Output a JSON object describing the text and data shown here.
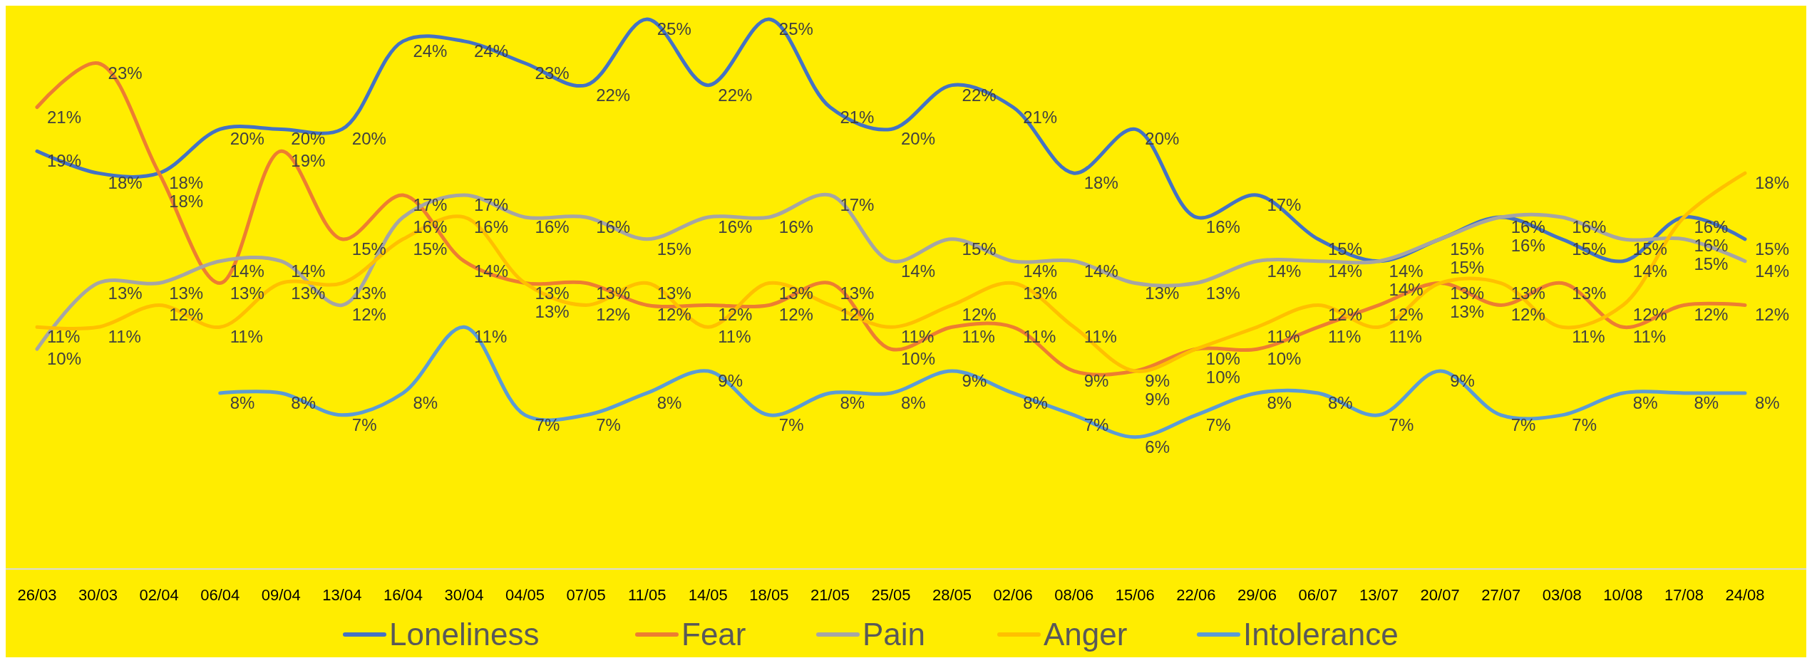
{
  "chart_data": {
    "type": "line",
    "categories": [
      "26/03",
      "30/03",
      "02/04",
      "06/04",
      "09/04",
      "13/04",
      "16/04",
      "30/04",
      "04/05",
      "07/05",
      "11/05",
      "14/05",
      "18/05",
      "21/05",
      "25/05",
      "28/05",
      "02/06",
      "08/06",
      "15/06",
      "22/06",
      "29/06",
      "06/07",
      "13/07",
      "20/07",
      "27/07",
      "03/08",
      "10/08",
      "17/08",
      "24/08"
    ],
    "series": [
      {
        "name": "Loneliness",
        "color": "#4472c4",
        "values": [
          19,
          18,
          18,
          20,
          20,
          20,
          24,
          24,
          23,
          22,
          25,
          22,
          25,
          21,
          20,
          22,
          21,
          18,
          20,
          16,
          17,
          15,
          14,
          15,
          16,
          15,
          14,
          16,
          15
        ],
        "value_labels": [
          "19%",
          "18%",
          "18%",
          "20%",
          "20%",
          "20%",
          "24%",
          "24%",
          "23%",
          "22%",
          "25%",
          "22%",
          "25%",
          "21%",
          "20%",
          "22%",
          "21%",
          "18%",
          "20%",
          "16%",
          "17%",
          "15%",
          "14%",
          "15%",
          "16%",
          "15%",
          "14%",
          "16%",
          "15%"
        ]
      },
      {
        "name": "Fear",
        "color": "#ed7d31",
        "values": [
          21,
          23,
          18,
          13,
          19,
          15,
          17,
          14,
          13,
          13,
          12,
          12,
          12,
          13,
          10,
          11,
          11,
          9,
          9,
          10,
          10,
          11,
          12,
          13,
          12,
          13,
          11,
          12,
          12
        ],
        "value_labels": [
          "21%",
          "23%",
          "18%",
          "13%",
          "19%",
          "15%",
          "17%",
          "14%",
          "13%",
          "13%",
          "12%",
          "12%",
          "12%",
          "13%",
          "10%",
          "11%",
          "11%",
          "9%",
          "9%",
          "10%",
          "10%",
          "11%",
          "12%",
          "13%",
          "12%",
          "13%",
          "11%",
          "12%",
          "12%"
        ]
      },
      {
        "name": "Pain",
        "color": "#a5a5a5",
        "values": [
          10,
          13,
          13,
          14,
          14,
          12,
          16,
          17,
          16,
          16,
          15,
          16,
          16,
          17,
          14,
          15,
          14,
          14,
          13,
          13,
          14,
          14,
          14,
          15,
          16,
          16,
          15,
          15,
          14
        ],
        "value_labels": [
          "10%",
          "13%",
          "13%",
          "14%",
          "14%",
          "12%",
          "16%",
          "17%",
          "16%",
          "16%",
          "15%",
          "16%",
          "16%",
          "17%",
          "14%",
          "15%",
          "14%",
          "14%",
          "13%",
          "13%",
          "14%",
          "14%",
          "14%",
          "15%",
          "16%",
          "16%",
          "15%",
          "15%",
          "14%"
        ]
      },
      {
        "name": "Anger",
        "color": "#ffc000",
        "values": [
          11,
          11,
          12,
          11,
          13,
          13,
          15,
          16,
          13,
          12,
          13,
          11,
          13,
          12,
          11,
          12,
          13,
          11,
          9,
          10,
          11,
          12,
          11,
          13,
          13,
          11,
          12,
          16,
          18
        ],
        "value_labels": [
          "11%",
          "11%",
          "12%",
          "11%",
          "13%",
          "13%",
          "15%",
          "16%",
          "13%",
          "12%",
          "13%",
          "11%",
          "13%",
          "12%",
          "11%",
          "12%",
          "13%",
          "11%",
          "9%",
          "10%",
          "11%",
          "12%",
          "11%",
          "13%",
          "13%",
          "11%",
          "12%",
          "16%",
          "18%"
        ]
      },
      {
        "name": "Intolerance",
        "color": "#5b9bd5",
        "values": [
          null,
          null,
          null,
          8,
          8,
          7,
          8,
          11,
          7,
          7,
          8,
          9,
          7,
          8,
          8,
          9,
          8,
          7,
          6,
          7,
          8,
          8,
          7,
          9,
          7,
          7,
          8,
          8,
          8
        ],
        "value_labels": [
          null,
          null,
          null,
          "8%",
          "8%",
          "7%",
          "8%",
          "11%",
          "7%",
          "7%",
          "8%",
          "9%",
          "7%",
          "8%",
          "8%",
          "9%",
          "8%",
          "7%",
          "6%",
          "7%",
          "8%",
          "8%",
          "7%",
          "9%",
          "7%",
          "7%",
          "8%",
          "8%",
          "8%"
        ]
      }
    ],
    "legend": "bottom",
    "grid": false
  }
}
